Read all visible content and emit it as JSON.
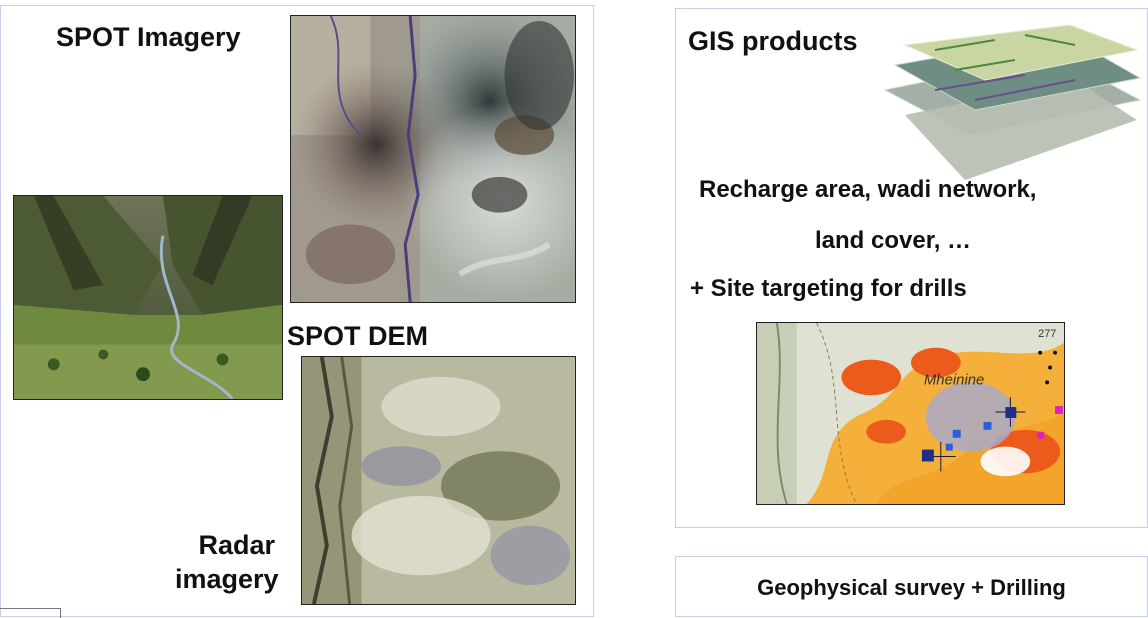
{
  "left_panel": {
    "spot_imagery_label": "SPOT Imagery",
    "spot_dem_label": "SPOT DEM",
    "radar_label_line1": "Radar",
    "radar_label_line2": "imagery"
  },
  "right_panel": {
    "gis_label": "GIS products",
    "line1": "Recharge area, wadi network,",
    "line2": "land cover, …",
    "line3": "+ Site targeting for drills",
    "map_number": "277",
    "map_place": "Mheinine"
  },
  "bottom_box": {
    "label": "Geophysical survey + Drilling"
  }
}
